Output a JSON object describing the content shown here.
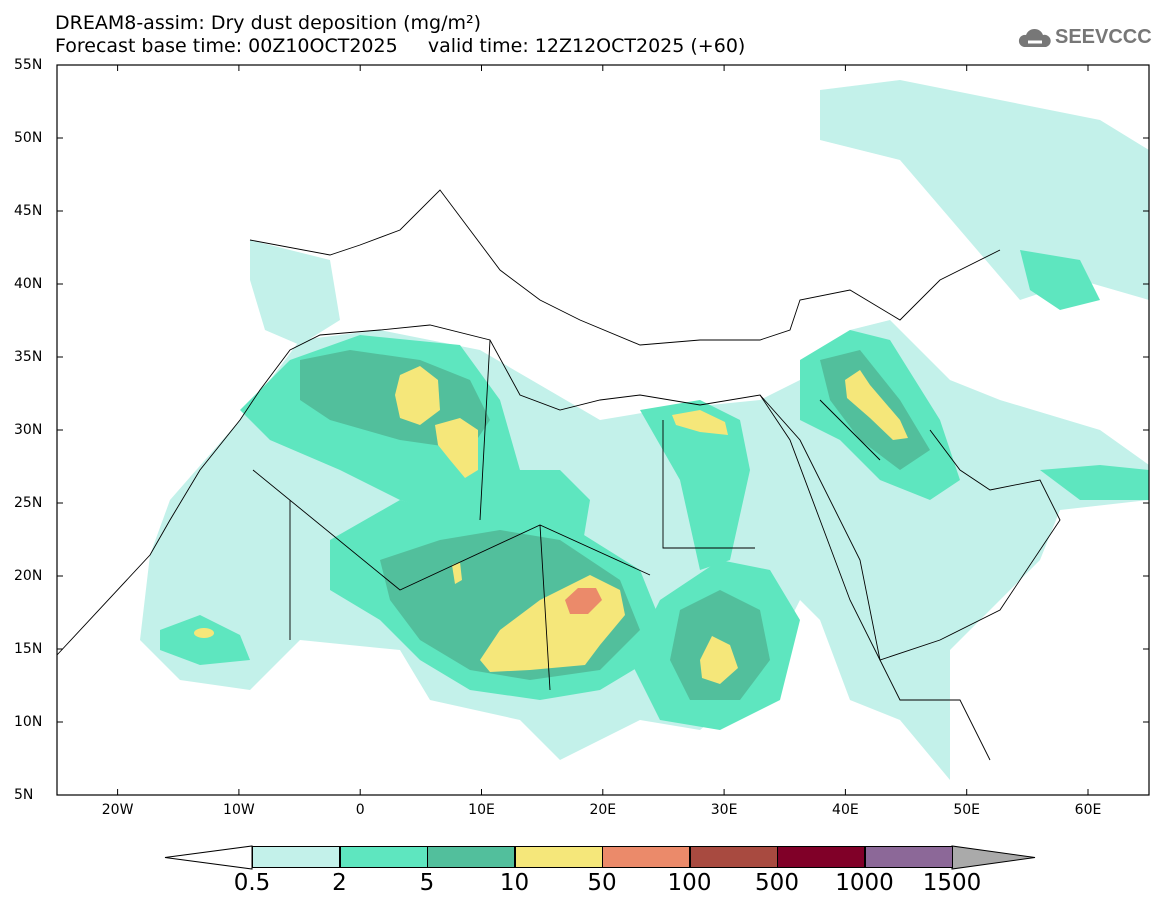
{
  "header": {
    "title": "DREAM8-assim: Dry dust deposition (mg/m²)",
    "base_time": "Forecast base time: 00Z10OCT2025",
    "valid_time": "valid time: 12Z12OCT2025 (+60)"
  },
  "logo": {
    "text": "SEEVCCC",
    "icon": "cloud-icon"
  },
  "map": {
    "lat_labels": [
      "55N",
      "50N",
      "45N",
      "40N",
      "35N",
      "30N",
      "25N",
      "20N",
      "15N",
      "10N",
      "5N"
    ],
    "lon_labels": [
      "20W",
      "10W",
      "0",
      "10E",
      "20E",
      "30E",
      "40E",
      "50E",
      "60E"
    ]
  },
  "colorbar": {
    "labels": [
      "0.5",
      "2",
      "5",
      "10",
      "50",
      "100",
      "500",
      "1000",
      "1500"
    ],
    "colors": [
      "#c3f1ea",
      "#5ee6bf",
      "#52bf9c",
      "#f5e77a",
      "#eb8a6a",
      "#a84a40",
      "#800028",
      "#8c6898",
      "#aaaaaa"
    ]
  }
}
